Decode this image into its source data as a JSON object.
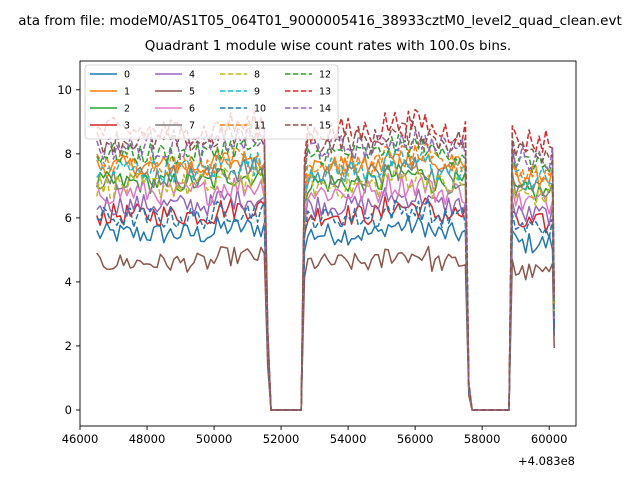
{
  "suptitle": "ata from file: modeM0/AS1T05_064T01_9000005416_38933cztM0_level2_quad_clean.evt",
  "chart_data": {
    "type": "line",
    "title": "Quadrant 1 module wise count rates with 100.0s bins.",
    "xlabel": "",
    "ylabel": "",
    "x_offset_label": "+4.083e8",
    "xlim": [
      46000,
      60800
    ],
    "ylim": [
      -0.5,
      10.9
    ],
    "xticks": [
      46000,
      48000,
      50000,
      52000,
      54000,
      56000,
      58000,
      60000
    ],
    "xtick_labels": [
      "46000",
      "48000",
      "50000",
      "52000",
      "54000",
      "56000",
      "58000",
      "60000"
    ],
    "yticks": [
      0,
      2,
      4,
      6,
      8,
      10
    ],
    "ytick_labels": [
      "0",
      "2",
      "4",
      "6",
      "8",
      "10"
    ],
    "legend_position": "upper-left",
    "legend_columns": 4,
    "segments": [
      {
        "start": 46500,
        "end": 51500,
        "drop_to": 52700
      },
      {
        "start": 52700,
        "end": 57500,
        "drop_to": 58900
      },
      {
        "start": 58900,
        "end": 60100,
        "drop_to": null
      }
    ],
    "series": [
      {
        "name": "0",
        "color": "#1f77b4",
        "dash": "solid",
        "mean": 5.5,
        "noise": 0.35,
        "gap_start": 51600,
        "gap_end": 52600
      },
      {
        "name": "1",
        "color": "#ff7f0e",
        "dash": "solid",
        "mean": 7.6,
        "noise": 0.35,
        "gap_start": 51600,
        "gap_end": 52600
      },
      {
        "name": "2",
        "color": "#2ca02c",
        "dash": "solid",
        "mean": 7.1,
        "noise": 0.35,
        "gap_start": 51600,
        "gap_end": 52600
      },
      {
        "name": "3",
        "color": "#d62728",
        "dash": "solid",
        "mean": 6.1,
        "noise": 0.35,
        "gap_start": 51600,
        "gap_end": 52600
      },
      {
        "name": "4",
        "color": "#9467bd",
        "dash": "solid",
        "mean": 6.4,
        "noise": 0.35,
        "gap_start": 51600,
        "gap_end": 52600
      },
      {
        "name": "5",
        "color": "#8c564b",
        "dash": "solid",
        "mean": 4.6,
        "noise": 0.3,
        "gap_start": 51600,
        "gap_end": 52600
      },
      {
        "name": "6",
        "color": "#e377c2",
        "dash": "solid",
        "mean": 6.8,
        "noise": 0.4,
        "gap_start": 51600,
        "gap_end": 52600
      },
      {
        "name": "7",
        "color": "#7f7f7f",
        "dash": "solid",
        "mean": 7.3,
        "noise": 0.4,
        "gap_start": 51600,
        "gap_end": 52600
      },
      {
        "name": "8",
        "color": "#bcbd22",
        "dash": "dashed",
        "mean": 7.0,
        "noise": 0.4,
        "gap_start": 51600,
        "gap_end": 52600
      },
      {
        "name": "9",
        "color": "#17becf",
        "dash": "dashed",
        "mean": 7.5,
        "noise": 0.4,
        "gap_start": 51600,
        "gap_end": 52600
      },
      {
        "name": "10",
        "color": "#1f77b4",
        "dash": "dashed",
        "mean": 6.0,
        "noise": 0.35,
        "gap_start": 51600,
        "gap_end": 52600
      },
      {
        "name": "11",
        "color": "#ff7f0e",
        "dash": "dashed",
        "mean": 7.7,
        "noise": 0.35,
        "gap_start": 51600,
        "gap_end": 52600
      },
      {
        "name": "12",
        "color": "#2ca02c",
        "dash": "dashed",
        "mean": 8.0,
        "noise": 0.35,
        "gap_start": 51600,
        "gap_end": 52600
      },
      {
        "name": "13",
        "color": "#d62728",
        "dash": "dashed",
        "mean": 8.7,
        "noise": 0.45,
        "gap_start": 51600,
        "gap_end": 52600
      },
      {
        "name": "14",
        "color": "#9467bd",
        "dash": "dashed",
        "mean": 8.2,
        "noise": 0.4,
        "gap_start": 51600,
        "gap_end": 52600
      },
      {
        "name": "15",
        "color": "#8c564b",
        "dash": "dashed",
        "mean": 8.4,
        "noise": 0.4,
        "gap_start": 51600,
        "gap_end": 52600
      }
    ]
  }
}
